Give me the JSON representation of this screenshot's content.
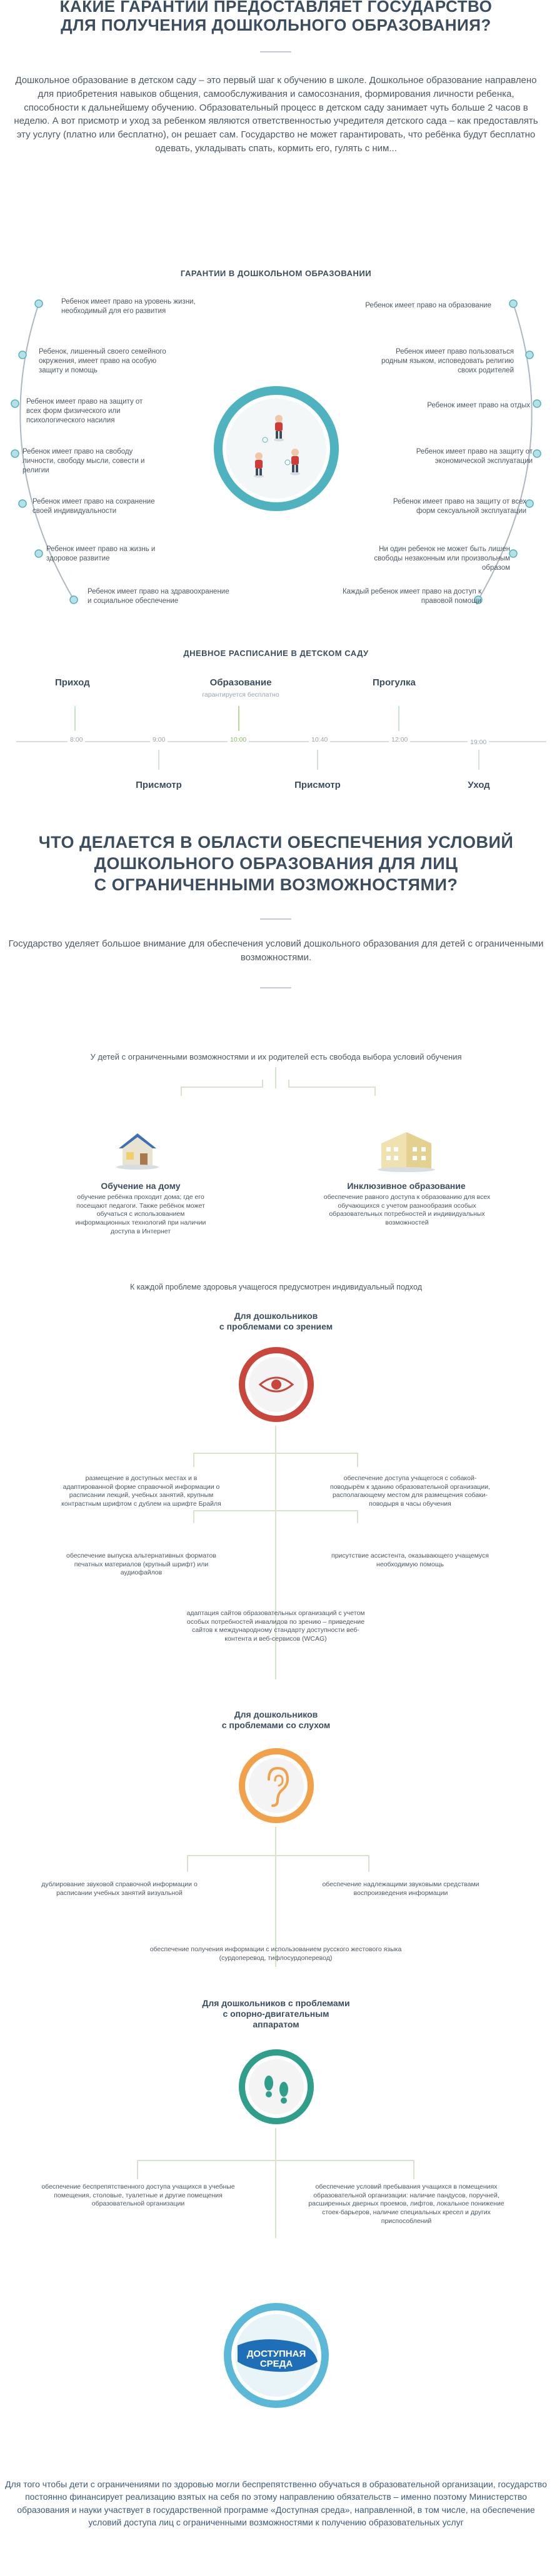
{
  "top": {
    "title_line1": "КАКИЕ ГАРАНТИИ ПРЕДОСТАВЛЯЕТ ГОСУДАРСТВО",
    "title_line2": "ДЛЯ ПОЛУЧЕНИЯ ДОШКОЛЬНОГО ОБРАЗОВАНИЯ?",
    "intro": "Дошкольное образование в детском саду – это первый шаг к обучению в школе. Дошкольное образование направлено для приобретения навыков общения, самообслуживания и самосознания, формирования личности ребенка, способности к дальнейшему обучению. Образовательный процесс в детском саду занимает чуть больше 2 часов в неделю. А вот присмотр и уход за ребенком являются ответственностью учредителя детского сада – как предоставлять эту услугу (платно или бесплатно), он решает сам. Государство не может гарантировать, что ребёнка будут бесплатно одевать, укладывать спать, кормить его, гулять с ним..."
  },
  "guarantees": {
    "title": "ГАРАНТИИ В ДОШКОЛЬНОМ ОБРАЗОВАНИИ",
    "left": [
      "Ребенок имеет право на уровень жизни, необходимый для его развития",
      "Ребенок, лишенный своего семейного окружения, имеет право на особую защиту и помощь",
      "Ребенок имеет право на защиту от всех форм физического или психологического насилия",
      "Ребенок имеет право на свободу личности, свободу мысли, совести и религии",
      "Ребенок имеет право на сохранение своей индивидуальности",
      "Ребенок имеет право на жизнь и здоровое развитие",
      "Ребенок имеет право на здравоохранение и социальное обеспечение"
    ],
    "right": [
      "Ребенок имеет право на образование",
      "Ребенок имеет право пользоваться родным языком, исповедовать религию своих родителей",
      "Ребенок имеет право на отдых",
      "Ребенок имеет право на защиту от экономической эксплуатации",
      "Ребенок имеет право на защиту от всех форм сексуальной эксплуатации",
      "Ни один ребенок не может быть лишен свободы незаконным или произвольным образом",
      "Каждый ребенок имеет право на доступ к правовой помощи"
    ]
  },
  "schedule": {
    "title": "ДНЕВНОЕ РАСПИСАНИЕ В ДЕТСКОМ САДУ",
    "times": [
      "8:00",
      "9:00",
      "10:00",
      "10:40",
      "12:00",
      "19:00"
    ],
    "top_labels": [
      {
        "label": "Приход",
        "sub": ""
      },
      {
        "label": "Образование",
        "sub": "гарантируется бесплатно"
      },
      {
        "label": "Прогулка",
        "sub": ""
      }
    ],
    "bottom_labels": [
      "Присмотр",
      "Присмотр",
      "Уход"
    ]
  },
  "disabled": {
    "title_line1": "ЧТО ДЕЛАЕТСЯ В ОБЛАСТИ ОБЕСПЕЧЕНИЯ УСЛОВИЙ",
    "title_line2": "ДОШКОЛЬНОГО ОБРАЗОВАНИЯ ДЛЯ ЛИЦ",
    "title_line3": "С ОГРАНИЧЕННЫМИ ВОЗМОЖНОСТЯМИ?",
    "intro": "Государство уделяет большое внимание для обеспечения условий дошкольного образования для детей с ограниченными возможностями.",
    "choice": "У детей с ограниченными возможностями и их родителей есть свобода выбора условий обучения",
    "home_title": "Обучение на дому",
    "home_text": "обучение ребёнка проходит дома; где его посещают педагоги. Также ребёнок может обучаться с использованием информационных технологий при наличии доступа в Интернет",
    "incl_title": "Инклюзивное образование",
    "incl_text": "обеспечение равного доступа к образованию для всех обучающихся с учетом разнообразия особых образовательных потребностей и индивидуальных возможностей",
    "individual": "К каждой проблеме здоровья учащегося предусмотрен индивидуальный подход"
  },
  "vision": {
    "title_line1": "Для дошкольников",
    "title_line2": "с проблемами со зрением",
    "items": [
      "размещение в доступных местах и в адаптированной форме справочной информации о расписании лекций, учебных занятий, крупным контрастным шрифтом с дублем на шрифте Брайля",
      "обеспечение доступа учащегося с собакой-поводырём к зданию образовательной организации, располагающему местом для размещения собаки-поводыря в часы обучения",
      "обеспечение выпуска альтернативных форматов печатных материалов (крупный шрифт) или аудиофайлов",
      "присутствие ассистента, оказывающего учащемуся необходимую помощь",
      "адаптация сайтов образовательных организаций с учетом особых потребностей инвалидов по зрению – приведение сайтов к международному стандарту доступности веб-контента и веб-сервисов (WCAG)"
    ]
  },
  "hearing": {
    "title_line1": "Для дошкольников",
    "title_line2": "с проблемами со слухом",
    "items": [
      "дублирование звуковой справочной информации о расписании учебных занятий визуальной",
      "обеспечение надлежащими звуковыми средствами воспроизведения информации",
      "обеспечение получения информации с использованием русского жестового языка (сурдоперевод, тифлосурдоперевод)"
    ]
  },
  "motor": {
    "title_line1": "Для дошкольников с проблемами",
    "title_line2": "с опорно-двигательным",
    "title_line3": "аппаратом",
    "items": [
      "обеспечение беспрепятственного доступа учащихся в учебные помещения, столовые, туалетные и другие помещения образовательной организации",
      "обеспечение условий пребывания учащихся в помещениях образовательной организации: наличие пандусов, поручней, расширенных дверных проемов, лифтов, локальное понижение стоек-барьеров, наличие специальных кресел и других приспособлений"
    ]
  },
  "program": {
    "logo_line1": "ДОСТУПНАЯ",
    "logo_line2": "СРЕДА",
    "text": "Для того чтобы дети с ограничениями по здоровью могли беспрепятственно обучаться в образовательной организации, государство постоянно финансирует реализацию взятых на себя по этому направлению обязательств – именно поэтому Министерство образования и науки участвует в государственной программе «Доступная среда», направленной, в том числе, на обеспечение условий доступа лиц с ограниченными возможностями к получению образовательных услуг"
  },
  "colors": {
    "accent_teal": "#4fb3bf",
    "accent_green": "#9bc47f",
    "accent_red": "#c8463b",
    "accent_orange": "#f1a14a",
    "text_dark": "#3b4d5e"
  }
}
